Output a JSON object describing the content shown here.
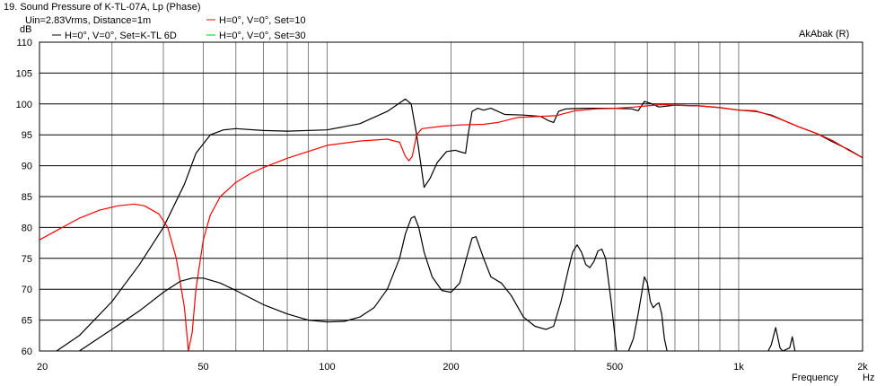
{
  "window": {
    "title": "19. Sound Pressure of K-TL-07A, Lp (Phase)",
    "condition": "Uin=2.83Vrms, Distance=1m",
    "software_tag": "AkAbak (R)"
  },
  "legend": {
    "entries": [
      {
        "label": "H=0°, V=0°, Set=K-TL 6D",
        "color": "#000000"
      },
      {
        "label": "H=0°, V=0°, Set=10",
        "color": "#ff0000"
      },
      {
        "label": "H=0°, V=0°, Set=30",
        "color": "#00cc00"
      }
    ]
  },
  "chart_data": {
    "type": "line",
    "x_scale": "log",
    "xlim": [
      20,
      2000
    ],
    "ylim": [
      60,
      110
    ],
    "ylabel": "dB",
    "xlabel": "Frequency",
    "x_unit": "Hz",
    "grid": true,
    "legend_position": "top-left",
    "y_ticks": [
      "60",
      "65",
      "70",
      "75",
      "80",
      "85",
      "90",
      "95",
      "100",
      "105",
      "110"
    ],
    "x_ticks": [
      {
        "value": 20,
        "label": "20"
      },
      {
        "value": 50,
        "label": "50"
      },
      {
        "value": 100,
        "label": "100"
      },
      {
        "value": 200,
        "label": "200"
      },
      {
        "value": 500,
        "label": "500"
      },
      {
        "value": 1000,
        "label": "1k"
      },
      {
        "value": 2000,
        "label": "2k"
      }
    ],
    "series": [
      {
        "name": "H=0°, V=0°, Set=K-TL 6D",
        "color": "#000000",
        "points": [
          [
            22,
            60
          ],
          [
            25,
            62.5
          ],
          [
            30,
            68
          ],
          [
            35,
            74
          ],
          [
            40,
            80
          ],
          [
            45,
            87
          ],
          [
            48,
            92
          ],
          [
            52,
            95
          ],
          [
            56,
            95.8
          ],
          [
            60,
            96
          ],
          [
            70,
            95.7
          ],
          [
            80,
            95.6
          ],
          [
            100,
            95.8
          ],
          [
            120,
            96.8
          ],
          [
            140,
            98.8
          ],
          [
            155,
            100.8
          ],
          [
            160,
            100
          ],
          [
            165,
            95
          ],
          [
            170,
            89
          ],
          [
            172,
            86.5
          ],
          [
            178,
            88
          ],
          [
            185,
            90.5
          ],
          [
            195,
            92.3
          ],
          [
            205,
            92.5
          ],
          [
            212,
            92.2
          ],
          [
            217,
            92
          ],
          [
            220,
            95
          ],
          [
            225,
            98.8
          ],
          [
            232,
            99.3
          ],
          [
            240,
            99
          ],
          [
            250,
            99.3
          ],
          [
            270,
            98.3
          ],
          [
            300,
            98.2
          ],
          [
            330,
            98
          ],
          [
            345,
            97.3
          ],
          [
            355,
            97
          ],
          [
            365,
            98.8
          ],
          [
            380,
            99.2
          ],
          [
            420,
            99.3
          ],
          [
            500,
            99.3
          ],
          [
            550,
            99.2
          ],
          [
            570,
            98.9
          ],
          [
            590,
            100.4
          ],
          [
            610,
            100.1
          ],
          [
            640,
            99.5
          ],
          [
            700,
            99.8
          ],
          [
            800,
            99.7
          ],
          [
            900,
            99.4
          ],
          [
            1000,
            99
          ],
          [
            1100,
            98.8
          ],
          [
            1200,
            98.2
          ],
          [
            1300,
            97.2
          ],
          [
            1400,
            96.3
          ],
          [
            1550,
            95.2
          ],
          [
            1700,
            93.8
          ],
          [
            1850,
            92.6
          ],
          [
            2000,
            91.3
          ]
        ]
      },
      {
        "name": "H=0°, V=0°, Set=10",
        "color": "#ff0000",
        "points": [
          [
            20,
            78
          ],
          [
            22,
            79.5
          ],
          [
            25,
            81.5
          ],
          [
            28,
            82.8
          ],
          [
            31,
            83.5
          ],
          [
            34,
            83.8
          ],
          [
            36,
            83.5
          ],
          [
            39,
            82.2
          ],
          [
            41,
            80
          ],
          [
            43,
            75
          ],
          [
            45,
            67
          ],
          [
            46,
            60
          ],
          [
            47,
            63
          ],
          [
            48,
            70
          ],
          [
            49,
            74
          ],
          [
            50,
            78
          ],
          [
            52,
            82
          ],
          [
            55,
            85
          ],
          [
            60,
            87.3
          ],
          [
            65,
            88.7
          ],
          [
            70,
            89.7
          ],
          [
            80,
            91.2
          ],
          [
            100,
            93.3
          ],
          [
            120,
            94
          ],
          [
            140,
            94.3
          ],
          [
            150,
            93.8
          ],
          [
            155,
            91.5
          ],
          [
            158,
            90.8
          ],
          [
            161,
            91.5
          ],
          [
            165,
            95
          ],
          [
            170,
            96
          ],
          [
            190,
            96.4
          ],
          [
            210,
            96.6
          ],
          [
            240,
            96.7
          ],
          [
            260,
            97
          ],
          [
            290,
            97.8
          ],
          [
            330,
            98
          ],
          [
            360,
            98.1
          ],
          [
            380,
            98.5
          ],
          [
            400,
            98.9
          ],
          [
            450,
            99.2
          ],
          [
            500,
            99.3
          ],
          [
            560,
            99.5
          ],
          [
            600,
            99.7
          ],
          [
            650,
            99.9
          ],
          [
            700,
            99.8
          ],
          [
            800,
            99.7
          ],
          [
            900,
            99.4
          ],
          [
            1000,
            99
          ],
          [
            1100,
            98.9
          ],
          [
            1200,
            98.1
          ],
          [
            1300,
            97.2
          ],
          [
            1400,
            96.3
          ],
          [
            1550,
            95.2
          ],
          [
            1700,
            94
          ],
          [
            1850,
            92.5
          ],
          [
            2000,
            91.3
          ]
        ]
      },
      {
        "name": "H=0°, V=0°, Set=30",
        "color": "#00cc00",
        "points": []
      },
      {
        "name": "",
        "color": "#000000",
        "points": [
          [
            25,
            60
          ],
          [
            30,
            63.5
          ],
          [
            35,
            66.5
          ],
          [
            40,
            69.5
          ],
          [
            44,
            71.3
          ],
          [
            47,
            71.8
          ],
          [
            50,
            71.8
          ],
          [
            55,
            71
          ],
          [
            60,
            69.8
          ],
          [
            70,
            67.5
          ],
          [
            80,
            66
          ],
          [
            90,
            65
          ],
          [
            100,
            64.7
          ],
          [
            110,
            64.8
          ],
          [
            120,
            65.5
          ],
          [
            130,
            67
          ],
          [
            140,
            70
          ],
          [
            150,
            75
          ],
          [
            155,
            79
          ],
          [
            160,
            81.5
          ],
          [
            163,
            81.8
          ],
          [
            167,
            80
          ],
          [
            172,
            76
          ],
          [
            180,
            72
          ],
          [
            190,
            69.8
          ],
          [
            200,
            69.5
          ],
          [
            210,
            71
          ],
          [
            220,
            76
          ],
          [
            225,
            78.3
          ],
          [
            230,
            78.5
          ],
          [
            240,
            75
          ],
          [
            250,
            72
          ],
          [
            265,
            71
          ],
          [
            280,
            69
          ],
          [
            300,
            65.5
          ],
          [
            320,
            64
          ],
          [
            340,
            63.5
          ],
          [
            355,
            64
          ],
          [
            370,
            68
          ],
          [
            385,
            73
          ],
          [
            395,
            76
          ],
          [
            405,
            77.2
          ],
          [
            415,
            76
          ],
          [
            425,
            74
          ],
          [
            435,
            73.5
          ],
          [
            445,
            74.5
          ],
          [
            455,
            76.2
          ],
          [
            465,
            76.5
          ],
          [
            475,
            75
          ],
          [
            490,
            68
          ],
          [
            505,
            60
          ]
        ]
      },
      {
        "name": "",
        "color": "#000000",
        "points": [
          [
            540,
            60
          ],
          [
            555,
            62
          ],
          [
            570,
            66
          ],
          [
            580,
            69
          ],
          [
            590,
            72
          ],
          [
            600,
            71
          ],
          [
            610,
            68
          ],
          [
            620,
            67
          ],
          [
            630,
            67.5
          ],
          [
            640,
            67.8
          ],
          [
            650,
            66
          ],
          [
            660,
            62
          ],
          [
            670,
            60
          ]
        ]
      },
      {
        "name": "",
        "color": "#000000",
        "points": [
          [
            1180,
            60
          ],
          [
            1200,
            61
          ],
          [
            1230,
            63.8
          ],
          [
            1260,
            60.5
          ],
          [
            1280,
            60
          ],
          [
            1330,
            60.5
          ],
          [
            1350,
            62.3
          ],
          [
            1370,
            60
          ]
        ]
      }
    ]
  }
}
